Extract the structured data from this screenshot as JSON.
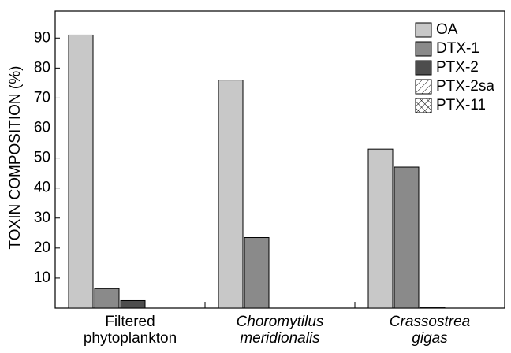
{
  "chart_data": {
    "type": "bar",
    "ylabel": "TOXIN COMPOSITION (%)",
    "categories": [
      "Filtered\nphytoplankton",
      "Choromytilus\nmeridionalis",
      "Crassostrea\ngigas"
    ],
    "category_italic": [
      false,
      true,
      true
    ],
    "series": [
      {
        "name": "OA",
        "color": "#c8c8c8",
        "pattern": "solid",
        "values": [
          91,
          76,
          53
        ]
      },
      {
        "name": "DTX-1",
        "color": "#8a8a8a",
        "pattern": "solid",
        "values": [
          6.5,
          23.5,
          47
        ]
      },
      {
        "name": "PTX-2",
        "color": "#4d4d4d",
        "pattern": "solid",
        "values": [
          2.5,
          0,
          0.3
        ]
      },
      {
        "name": "PTX-2sa",
        "color": "#ffffff",
        "pattern": "hatch",
        "values": [
          0,
          0,
          0
        ]
      },
      {
        "name": "PTX-11",
        "color": "#ffffff",
        "pattern": "crosshatch",
        "values": [
          0,
          0,
          0
        ]
      }
    ],
    "ylim": [
      0,
      99
    ],
    "yticks": [
      10,
      20,
      30,
      40,
      50,
      60,
      70,
      80,
      90
    ],
    "legend": "upper right",
    "grid": false
  }
}
